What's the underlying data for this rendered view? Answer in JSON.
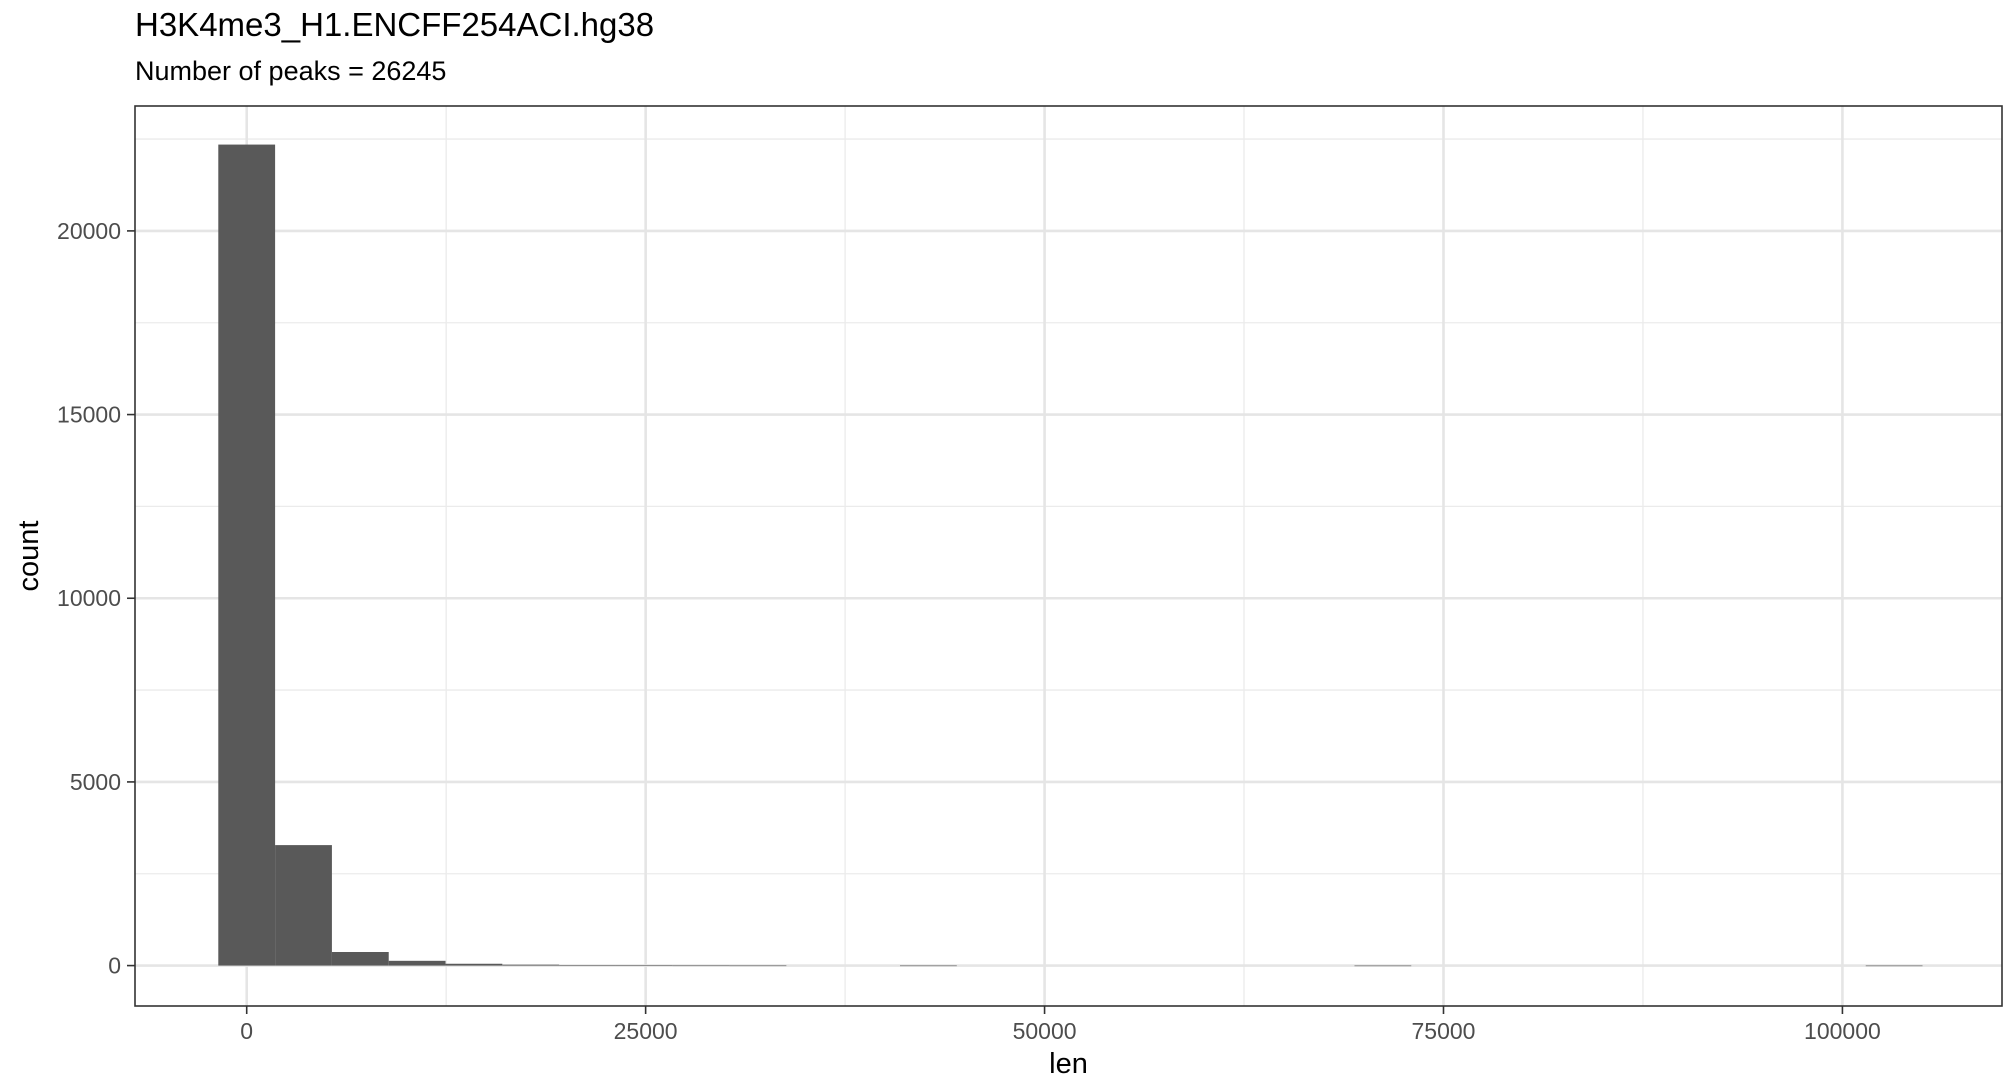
{
  "chart_data": {
    "type": "bar",
    "title": "H3K4me3_H1.ENCFF254ACI.hg38",
    "subtitle": "Number of peaks = 26245",
    "xlabel": "len",
    "ylabel": "count",
    "xlim": [
      -7000,
      110000
    ],
    "ylim": [
      -1100,
      23400
    ],
    "x_ticks": [
      0,
      25000,
      50000,
      75000,
      100000
    ],
    "x_tick_labels": [
      "0",
      "25000",
      "50000",
      "75000",
      "100000"
    ],
    "y_ticks": [
      0,
      5000,
      10000,
      15000,
      20000
    ],
    "y_tick_labels": [
      "0",
      "5000",
      "10000",
      "15000",
      "20000"
    ],
    "bin_width": 3560,
    "bins": [
      {
        "x0": -1780,
        "x1": 1780,
        "count": 22350
      },
      {
        "x0": 1780,
        "x1": 5340,
        "count": 3280
      },
      {
        "x0": 5340,
        "x1": 8900,
        "count": 370
      },
      {
        "x0": 8900,
        "x1": 12460,
        "count": 130
      },
      {
        "x0": 12460,
        "x1": 16020,
        "count": 50
      },
      {
        "x0": 16020,
        "x1": 19580,
        "count": 25
      },
      {
        "x0": 19580,
        "x1": 23140,
        "count": 12
      },
      {
        "x0": 23140,
        "x1": 26700,
        "count": 6
      },
      {
        "x0": 26700,
        "x1": 30260,
        "count": 4
      },
      {
        "x0": 30260,
        "x1": 33820,
        "count": 3
      },
      {
        "x0": 40940,
        "x1": 44500,
        "count": 2
      },
      {
        "x0": 69420,
        "x1": 72980,
        "count": 1
      },
      {
        "x0": 101460,
        "x1": 105020,
        "count": 1
      }
    ],
    "grid": true,
    "bar_color": "#595959"
  }
}
